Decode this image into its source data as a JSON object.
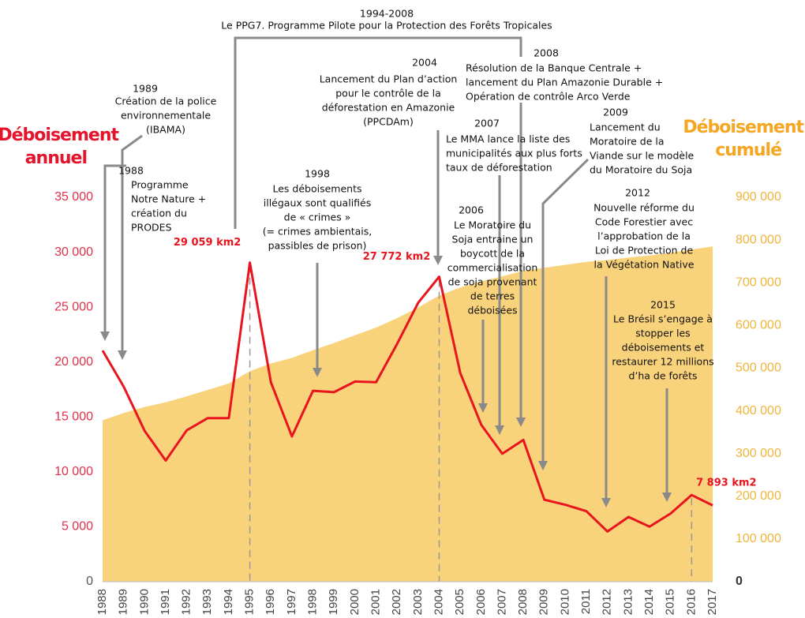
{
  "chart_data": {
    "type": "line",
    "ylabel": [
      "Déboisement",
      "annuel"
    ],
    "y2label": [
      "Déboisement",
      "cumulé"
    ],
    "x": [
      1988,
      1989,
      1990,
      1991,
      1992,
      1993,
      1994,
      1995,
      1996,
      1997,
      1998,
      1999,
      2000,
      2001,
      2002,
      2003,
      2004,
      2005,
      2006,
      2007,
      2008,
      2009,
      2010,
      2011,
      2012,
      2013,
      2014,
      2015,
      2016,
      2017
    ],
    "xlim": [
      1988,
      2017
    ],
    "ylim": [
      0,
      35000
    ],
    "yticks": [
      0,
      {
        "value": 5000,
        "label": "5 000"
      },
      {
        "value": 10000,
        "label": "10 000"
      },
      {
        "value": 15000,
        "label": "15 000"
      },
      {
        "value": 20000,
        "label": "20 000"
      },
      {
        "value": 25000,
        "label": "25 000"
      },
      {
        "value": 30000,
        "label": "30 000"
      },
      {
        "value": 35000,
        "label": "35 000"
      }
    ],
    "y2lim": [
      0,
      900000
    ],
    "y2ticks": [
      0,
      {
        "value": 100000,
        "label": "100 000"
      },
      {
        "value": 200000,
        "label": "200 000"
      },
      {
        "value": 300000,
        "label": "300 000"
      },
      {
        "value": 400000,
        "label": "400 000"
      },
      {
        "value": 500000,
        "label": "500 000"
      },
      {
        "value": 600000,
        "label": "600 000"
      },
      {
        "value": 700000,
        "label": "700 000"
      },
      {
        "value": 800000,
        "label": "800 000"
      },
      {
        "value": 900000,
        "label": "900 000"
      }
    ],
    "series": [
      {
        "type": "area",
        "axis": "y2",
        "color": "#f9d27c",
        "values": [
          378000,
          395000,
          409000,
          420000,
          434000,
          449000,
          464000,
          493000,
          511000,
          524000,
          542000,
          559000,
          577000,
          595000,
          617000,
          642000,
          670000,
          689000,
          703000,
          715000,
          728000,
          735000,
          742000,
          749000,
          753000,
          759000,
          764000,
          770000,
          778000,
          785000
        ]
      },
      {
        "type": "line",
        "axis": "y",
        "color": "#e8141e",
        "values": [
          21050,
          17770,
          13730,
          11030,
          13786,
          14896,
          14896,
          29059,
          18161,
          13227,
          17383,
          17259,
          18226,
          18165,
          21651,
          25396,
          27772,
          19014,
          14286,
          11651,
          12911,
          7464,
          7000,
          6418,
          4571,
          5891,
          5012,
          6207,
          7893,
          6947
        ],
        "value_labels": [
          null,
          null,
          null,
          null,
          null,
          null,
          null,
          "29 059 km2",
          null,
          null,
          null,
          null,
          null,
          null,
          null,
          null,
          "27 772 km2",
          null,
          null,
          null,
          null,
          null,
          null,
          null,
          null,
          null,
          null,
          null,
          "7 893 km2",
          null
        ]
      }
    ],
    "annotations": [
      {
        "year": "1994-2008",
        "lines": [
          "Le PPG7. Programme Pilote pour la Protection des Forêts Tropicales"
        ]
      },
      {
        "year": "1989",
        "lines": [
          "Création de la police",
          "environnementale",
          "(IBAMA)"
        ]
      },
      {
        "year": "1988",
        "lines": [
          "Programme",
          "Notre Nature +",
          "création du",
          "PRODES"
        ]
      },
      {
        "year": "1998",
        "lines": [
          "Les déboisements",
          "illégaux sont qualifiés",
          "de « crimes »",
          "(= crimes ambientais,",
          "passibles de prison)"
        ]
      },
      {
        "year": "2004",
        "lines": [
          "Lancement du Plan d’action",
          "pour le contrôle de la",
          "déforestation en Amazonie",
          "(PPCDAm)"
        ]
      },
      {
        "year": "2008",
        "lines": [
          "Résolution de la Banque Centrale +",
          "lancement du Plan Amazonie Durable +",
          "Opération de contrôle Arco Verde"
        ]
      },
      {
        "year": "2007",
        "lines": [
          "Le MMA lance la liste des",
          "municipalités aux plus forts",
          "taux de déforestation"
        ]
      },
      {
        "year": "2006",
        "lines": [
          "Le Moratoire du",
          "Soja entraine un",
          "boycott de la",
          "commercialisation",
          "de soja provenant",
          "de terres",
          "déboisées"
        ]
      },
      {
        "year": "2009",
        "lines": [
          "Lancement du",
          "Moratoire de la",
          "Viande sur le modèle",
          "du Moratoire du Soja"
        ]
      },
      {
        "year": "2012",
        "lines": [
          "Nouvelle réforme du",
          "Code Forestier avec",
          "l’approbation de la",
          "Loi de Protection de",
          "la Végétation Native"
        ]
      },
      {
        "year": "2015",
        "lines": [
          "Le Brésil s’engage à",
          "stopper les",
          "déboisements et",
          "restaurer 12 millions",
          "d’ha de forêts"
        ]
      }
    ]
  }
}
